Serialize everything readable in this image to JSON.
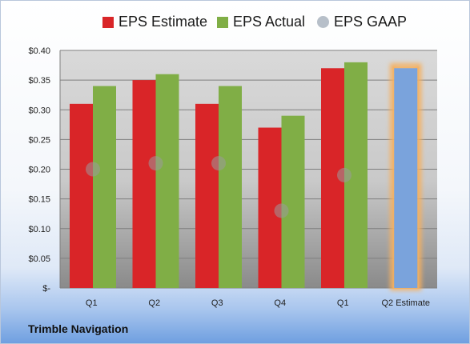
{
  "company": "Trimble Navigation",
  "colors": {
    "estimate": "#d92528",
    "actual": "#80ae46",
    "gaap": "#b7bfc9",
    "forecast": "#7aa3dc",
    "forecast_glow": "#f5b060"
  },
  "chart_data": {
    "type": "bar",
    "categories": [
      "Q1",
      "Q2",
      "Q3",
      "Q4",
      "Q1",
      "Q2 Estimate"
    ],
    "series": [
      {
        "name": "EPS Estimate",
        "values": [
          0.31,
          0.35,
          0.31,
          0.27,
          0.37,
          0.37
        ]
      },
      {
        "name": "EPS Actual",
        "values": [
          0.34,
          0.36,
          0.34,
          0.29,
          0.38,
          null
        ]
      },
      {
        "name": "EPS GAAP",
        "values": [
          0.2,
          0.21,
          0.21,
          0.13,
          0.19,
          null
        ]
      }
    ],
    "yticks": [
      "$-",
      "$0.05",
      "$0.10",
      "$0.15",
      "$0.20",
      "$0.25",
      "$0.30",
      "$0.35",
      "$0.40"
    ],
    "ylim": [
      0,
      0.4
    ],
    "grid": true,
    "legend": "top"
  }
}
